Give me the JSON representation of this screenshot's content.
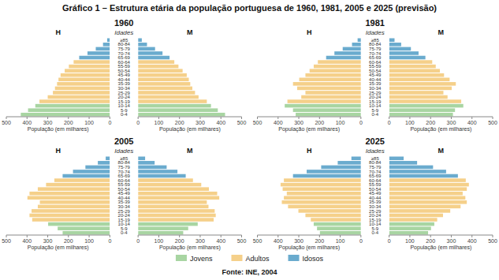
{
  "chart_data": {
    "type": "pyramid",
    "orientation": "horizontal",
    "title": "Gráfico 1 – Estrutura etária da população portuguesa de 1960, 1981, 2005 e 2025 (previsão)",
    "annotations": [
      "Fonte: INE, 2004"
    ],
    "xlabel": "População (em milhares)",
    "ylabel": "Idades",
    "categories": [
      "0-4",
      "5-9",
      "10-14",
      "15-19",
      "20-24",
      "25-29",
      "30-34",
      "35-39",
      "40-44",
      "45-49",
      "50-54",
      "55-59",
      "60-64",
      "65-69",
      "70-74",
      "75-79",
      "80-84",
      "≥85"
    ],
    "colors": [
      "#a8d5a2",
      "#a8d5a2",
      "#a8d5a2",
      "#f5d08a",
      "#f5d08a",
      "#f5d08a",
      "#f5d08a",
      "#f5d08a",
      "#f5d08a",
      "#f5d08a",
      "#f5d08a",
      "#f5d08a",
      "#f5d08a",
      "#6aabce",
      "#6aabce",
      "#6aabce",
      "#6aabce",
      "#6aabce"
    ],
    "legend": "bottom",
    "legend_entries": [
      {
        "name": "Jovens",
        "color": "#a8d5a2"
      },
      {
        "name": "Adultos",
        "color": "#f5d08a"
      },
      {
        "name": "Idosos",
        "color": "#6aabce"
      }
    ],
    "xlim": [
      0,
      500
    ],
    "xticks": [
      0,
      100,
      200,
      300,
      400,
      500
    ],
    "panels": [
      {
        "title": "1960",
        "series": [
          {
            "name": "H",
            "values": [
              430,
              395,
              360,
              340,
              300,
              275,
              265,
              255,
              248,
              238,
              218,
              198,
              175,
              148,
              108,
              68,
              33,
              13
            ]
          },
          {
            "name": "M",
            "values": [
              420,
              385,
              352,
              332,
              292,
              275,
              262,
              252,
              245,
              235,
              215,
              195,
              175,
              152,
              118,
              82,
              43,
              18
            ]
          }
        ]
      },
      {
        "title": "1981",
        "series": [
          {
            "name": "H",
            "values": [
              315,
              328,
              368,
              355,
              288,
              268,
              308,
              328,
              298,
              268,
              248,
              228,
              208,
              168,
              128,
              88,
              43,
              16
            ]
          },
          {
            "name": "M",
            "values": [
              308,
              318,
              358,
              348,
              282,
              262,
              302,
              322,
              292,
              265,
              245,
              225,
              208,
              175,
              142,
              105,
              58,
              26
            ]
          }
        ]
      },
      {
        "title": "2005",
        "series": [
          {
            "name": "H",
            "values": [
              228,
              252,
              298,
              375,
              388,
              378,
              348,
              338,
              398,
              388,
              348,
              308,
              268,
              228,
              178,
              118,
              58,
              20
            ]
          },
          {
            "name": "M",
            "values": [
              218,
              242,
              288,
              365,
              375,
              370,
              340,
              332,
              392,
              382,
              342,
              305,
              265,
              230,
              190,
              138,
              80,
              34
            ]
          }
        ]
      },
      {
        "title": "2025",
        "series": [
          {
            "name": "H",
            "values": [
              198,
              212,
              228,
              242,
              268,
              302,
              352,
              382,
              372,
              358,
              378,
              388,
              372,
              328,
              262,
              192,
              112,
              46
            ]
          },
          {
            "name": "M",
            "values": [
              188,
              202,
              218,
              232,
              260,
              295,
              345,
              375,
              368,
              355,
              375,
              385,
              370,
              332,
              275,
              212,
              135,
              70
            ]
          }
        ]
      }
    ]
  }
}
